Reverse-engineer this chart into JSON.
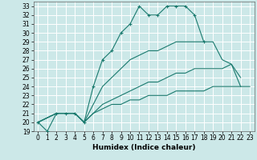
{
  "title": "",
  "xlabel": "Humidex (Indice chaleur)",
  "ylabel": "",
  "bg_color": "#cce8e8",
  "grid_color": "#ffffff",
  "line_color": "#1a7a6e",
  "xlim": [
    -0.5,
    23.5
  ],
  "ylim": [
    19,
    33.5
  ],
  "xticks": [
    0,
    1,
    2,
    3,
    4,
    5,
    6,
    7,
    8,
    9,
    10,
    11,
    12,
    13,
    14,
    15,
    16,
    17,
    18,
    19,
    20,
    21,
    22,
    23
  ],
  "yticks": [
    19,
    20,
    21,
    22,
    23,
    24,
    25,
    26,
    27,
    28,
    29,
    30,
    31,
    32,
    33
  ],
  "series": [
    {
      "x": [
        0,
        1,
        2,
        3,
        4,
        5,
        6,
        7,
        8,
        9,
        10,
        11,
        12,
        13,
        14,
        15,
        16,
        17,
        18
      ],
      "y": [
        20,
        19,
        21,
        21,
        21,
        20,
        24,
        27,
        28,
        30,
        31,
        33,
        32,
        32,
        33,
        33,
        33,
        32,
        29
      ],
      "marker": "+"
    },
    {
      "x": [
        0,
        2,
        3,
        4,
        5,
        6,
        7,
        8,
        9,
        10,
        11,
        12,
        13,
        14,
        15,
        16,
        17,
        18,
        19,
        20,
        21,
        22
      ],
      "y": [
        20,
        21,
        21,
        21,
        20,
        22,
        24,
        25,
        26,
        27,
        27.5,
        28,
        28,
        28.5,
        29,
        29,
        29,
        29,
        29,
        27,
        26.5,
        25
      ],
      "marker": null
    },
    {
      "x": [
        0,
        2,
        3,
        4,
        5,
        6,
        7,
        8,
        9,
        10,
        11,
        12,
        13,
        14,
        15,
        16,
        17,
        18,
        19,
        20,
        21,
        22
      ],
      "y": [
        20,
        21,
        21,
        21,
        20,
        21,
        22,
        22.5,
        23,
        23.5,
        24,
        24.5,
        24.5,
        25,
        25.5,
        25.5,
        26,
        26,
        26,
        26,
        26.5,
        24
      ],
      "marker": null
    },
    {
      "x": [
        0,
        2,
        3,
        4,
        5,
        6,
        7,
        8,
        9,
        10,
        11,
        12,
        13,
        14,
        15,
        16,
        17,
        18,
        19,
        20,
        21,
        22,
        23
      ],
      "y": [
        20,
        21,
        21,
        21,
        20,
        21,
        21.5,
        22,
        22,
        22.5,
        22.5,
        23,
        23,
        23,
        23.5,
        23.5,
        23.5,
        23.5,
        24,
        24,
        24,
        24,
        24
      ],
      "marker": null
    }
  ],
  "tick_fontsize": 5.5,
  "xlabel_fontsize": 6.5
}
